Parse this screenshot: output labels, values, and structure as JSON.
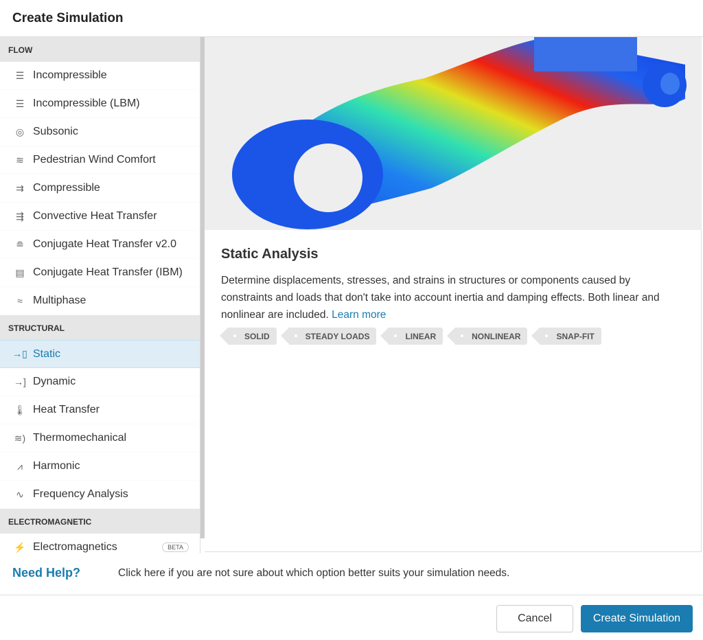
{
  "header": {
    "title": "Create Simulation"
  },
  "sidebar": {
    "sections": [
      {
        "label": "FLOW",
        "items": [
          {
            "label": "Incompressible",
            "icon": "lines-icon"
          },
          {
            "label": "Incompressible (LBM)",
            "icon": "lines-icon"
          },
          {
            "label": "Subsonic",
            "icon": "turbine-icon"
          },
          {
            "label": "Pedestrian Wind Comfort",
            "icon": "wind-icon"
          },
          {
            "label": "Compressible",
            "icon": "compress-arrows-icon"
          },
          {
            "label": "Convective Heat Transfer",
            "icon": "convective-icon"
          },
          {
            "label": "Conjugate Heat Transfer v2.0",
            "icon": "conjugate-icon"
          },
          {
            "label": "Conjugate Heat Transfer (IBM)",
            "icon": "conjugate-ibm-icon"
          },
          {
            "label": "Multiphase",
            "icon": "waves-icon"
          }
        ]
      },
      {
        "label": "STRUCTURAL",
        "items": [
          {
            "label": "Static",
            "icon": "arrow-block-icon",
            "selected": true
          },
          {
            "label": "Dynamic",
            "icon": "arrow-spring-icon"
          },
          {
            "label": "Heat Transfer",
            "icon": "thermometer-icon"
          },
          {
            "label": "Thermomechanical",
            "icon": "thermomechanical-icon"
          },
          {
            "label": "Harmonic",
            "icon": "pulse-icon"
          },
          {
            "label": "Frequency Analysis",
            "icon": "sine-wave-icon"
          }
        ]
      },
      {
        "label": "ELECTROMAGNETIC",
        "items": [
          {
            "label": "Electromagnetics",
            "icon": "electromagnetic-icon",
            "badge": "BETA"
          }
        ]
      }
    ]
  },
  "detail": {
    "title": "Static Analysis",
    "description": "Determine displacements, stresses, and strains in structures or components caused by constraints and loads that don't take into account inertia and damping effects. Both linear and nonlinear are included.",
    "learn_more": "Learn more",
    "tags": [
      "SOLID",
      "STEADY LOADS",
      "LINEAR",
      "NONLINEAR",
      "SNAP-FIT"
    ]
  },
  "help": {
    "title": "Need Help?",
    "text": "Click here if you are not sure about which option better suits your simulation needs."
  },
  "footer": {
    "cancel": "Cancel",
    "create": "Create Simulation"
  },
  "colors": {
    "accent": "#1a7cb0",
    "selected_bg": "#deedf6"
  }
}
